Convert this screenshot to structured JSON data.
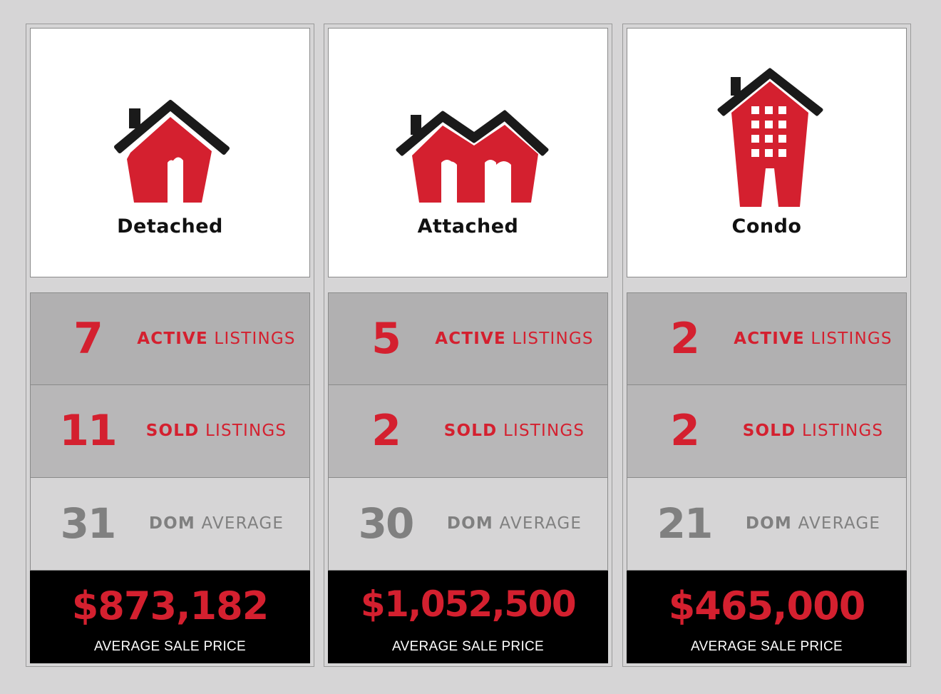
{
  "colors": {
    "accent": "#d4202f",
    "muted": "#808080",
    "dark": "#000000",
    "roof": "#1a1a1a"
  },
  "columns": [
    {
      "icon": "detached-house-icon",
      "type": "Detached",
      "active": {
        "value": "7",
        "label_strong": "ACTIVE",
        "label_rest": " LISTINGS"
      },
      "sold": {
        "value": "11",
        "label_strong": "SOLD",
        "label_rest": " LISTINGS"
      },
      "dom": {
        "value": "31",
        "label_strong": "DOM",
        "label_rest": " AVERAGE"
      },
      "price": "$873,182",
      "price_caption": "AVERAGE SALE PRICE"
    },
    {
      "icon": "attached-house-icon",
      "type": "Attached",
      "active": {
        "value": "5",
        "label_strong": "ACTIVE",
        "label_rest": " LISTINGS"
      },
      "sold": {
        "value": "2",
        "label_strong": "SOLD",
        "label_rest": " LISTINGS"
      },
      "dom": {
        "value": "30",
        "label_strong": "DOM",
        "label_rest": " AVERAGE"
      },
      "price": "$1,052,500",
      "price_caption": "AVERAGE SALE PRICE"
    },
    {
      "icon": "condo-building-icon",
      "type": "Condo",
      "active": {
        "value": "2",
        "label_strong": "ACTIVE",
        "label_rest": " LISTINGS"
      },
      "sold": {
        "value": "2",
        "label_strong": "SOLD",
        "label_rest": " LISTINGS"
      },
      "dom": {
        "value": "21",
        "label_strong": "DOM",
        "label_rest": " AVERAGE"
      },
      "price": "$465,000",
      "price_caption": "AVERAGE SALE PRICE"
    }
  ]
}
